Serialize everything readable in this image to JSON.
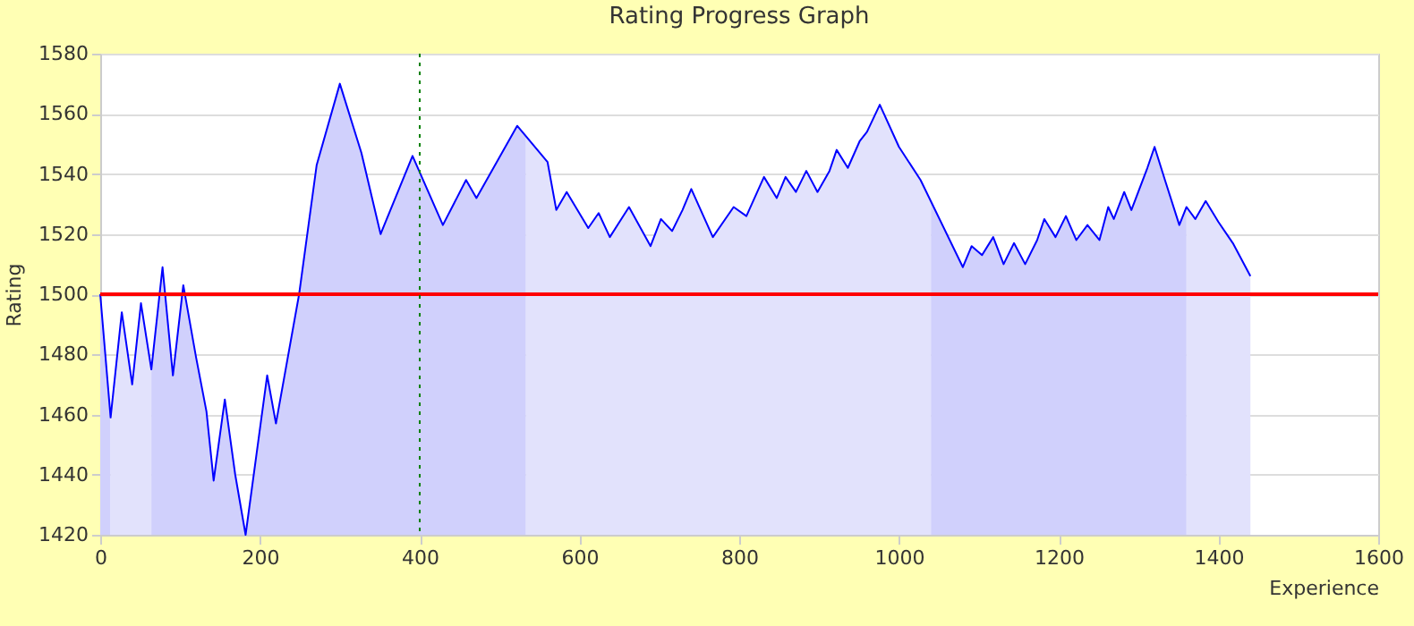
{
  "chart_data": {
    "type": "area",
    "title": "Rating Progress Graph",
    "xlabel": "Experience",
    "ylabel": "Rating",
    "xlim": [
      0,
      1600
    ],
    "xticks": [
      0,
      200,
      400,
      600,
      800,
      1000,
      1200,
      1400,
      1600
    ],
    "ylim": [
      1420,
      1580
    ],
    "yticks": [
      1420,
      1440,
      1460,
      1480,
      1500,
      1520,
      1540,
      1560,
      1580
    ],
    "grid": "y",
    "marker": "none",
    "line_style": "solid",
    "ref_lines": [
      {
        "axis": "y",
        "value": 1500,
        "color": "#ff0000",
        "line_style": "solid"
      },
      {
        "axis": "x",
        "value": 400,
        "color": "#008000",
        "line_style": "dotted"
      }
    ],
    "series": [
      {
        "type": "area",
        "color": "#d0d0fc",
        "x": [
          0,
          13
        ],
        "values": [
          1500,
          1459
        ]
      },
      {
        "type": "area",
        "color": "#e2e2fc",
        "x": [
          13,
          27,
          40,
          51,
          64
        ],
        "values": [
          1459,
          1494,
          1470,
          1497,
          1475
        ]
      },
      {
        "type": "area",
        "color": "#d0d0fc",
        "x": [
          64,
          78,
          91,
          104,
          120,
          133,
          142,
          156,
          169,
          182,
          209,
          220,
          249,
          271,
          300,
          327,
          351,
          391,
          429,
          458,
          471,
          522,
          533
        ],
        "values": [
          1475,
          1509,
          1473,
          1503,
          1479,
          1461,
          1438,
          1465,
          1440,
          1420,
          1473,
          1457,
          1500,
          1543,
          1570,
          1547,
          1520,
          1546,
          1523,
          1538,
          1532,
          1556,
          1553
        ]
      },
      {
        "type": "area",
        "color": "#e2e2fc",
        "x": [
          533,
          560,
          571,
          584,
          611,
          624,
          638,
          662,
          689,
          702,
          716,
          729,
          740,
          767,
          793,
          809,
          831,
          847,
          858,
          871,
          884,
          898,
          913,
          922,
          936,
          951,
          960,
          976,
          1000,
          1027,
          1040
        ],
        "values": [
          1553,
          1544,
          1528,
          1534,
          1522,
          1527,
          1519,
          1529,
          1516,
          1525,
          1521,
          1528,
          1535,
          1519,
          1529,
          1526,
          1539,
          1532,
          1539,
          1534,
          1541,
          1534,
          1541,
          1548,
          1542,
          1551,
          1554,
          1563,
          1549,
          1538,
          1531
        ]
      },
      {
        "type": "area",
        "color": "#d0d0fc",
        "x": [
          1040,
          1080,
          1091,
          1104,
          1118,
          1131,
          1144,
          1158,
          1173,
          1182,
          1196,
          1209,
          1222,
          1236,
          1251,
          1262,
          1269,
          1282,
          1291,
          1311,
          1320,
          1333,
          1351,
          1360
        ],
        "values": [
          1531,
          1509,
          1516,
          1513,
          1519,
          1510,
          1517,
          1510,
          1518,
          1525,
          1519,
          1526,
          1518,
          1523,
          1518,
          1529,
          1525,
          1534,
          1528,
          1542,
          1549,
          1538,
          1523,
          1529
        ]
      },
      {
        "type": "area",
        "color": "#e2e2fc",
        "x": [
          1360,
          1371,
          1384,
          1400,
          1418,
          1440
        ],
        "values": [
          1529,
          1525,
          1531,
          1524,
          1517,
          1506
        ]
      },
      {
        "type": "line",
        "color": "#0000ff",
        "x": [
          0,
          13,
          27,
          40,
          51,
          64,
          78,
          91,
          104,
          120,
          133,
          142,
          156,
          169,
          182,
          209,
          220,
          249,
          271,
          300,
          327,
          351,
          391,
          429,
          458,
          471,
          522,
          560,
          571,
          584,
          611,
          624,
          638,
          662,
          689,
          702,
          716,
          729,
          740,
          767,
          793,
          809,
          831,
          847,
          858,
          871,
          884,
          898,
          913,
          922,
          936,
          951,
          960,
          976,
          1000,
          1027,
          1080,
          1091,
          1104,
          1118,
          1131,
          1144,
          1158,
          1173,
          1182,
          1196,
          1209,
          1222,
          1236,
          1251,
          1262,
          1269,
          1282,
          1291,
          1311,
          1320,
          1333,
          1351,
          1360,
          1371,
          1384,
          1400,
          1418,
          1440
        ],
        "values": [
          1500,
          1459,
          1494,
          1470,
          1497,
          1475,
          1509,
          1473,
          1503,
          1479,
          1461,
          1438,
          1465,
          1440,
          1420,
          1473,
          1457,
          1500,
          1543,
          1570,
          1547,
          1520,
          1546,
          1523,
          1538,
          1532,
          1556,
          1544,
          1528,
          1534,
          1522,
          1527,
          1519,
          1529,
          1516,
          1525,
          1521,
          1528,
          1535,
          1519,
          1529,
          1526,
          1539,
          1532,
          1539,
          1534,
          1541,
          1534,
          1541,
          1548,
          1542,
          1551,
          1554,
          1563,
          1549,
          1538,
          1509,
          1516,
          1513,
          1519,
          1510,
          1517,
          1510,
          1518,
          1525,
          1519,
          1526,
          1518,
          1523,
          1518,
          1529,
          1525,
          1534,
          1528,
          1542,
          1549,
          1538,
          1523,
          1529,
          1525,
          1531,
          1524,
          1517,
          1506
        ]
      }
    ]
  }
}
